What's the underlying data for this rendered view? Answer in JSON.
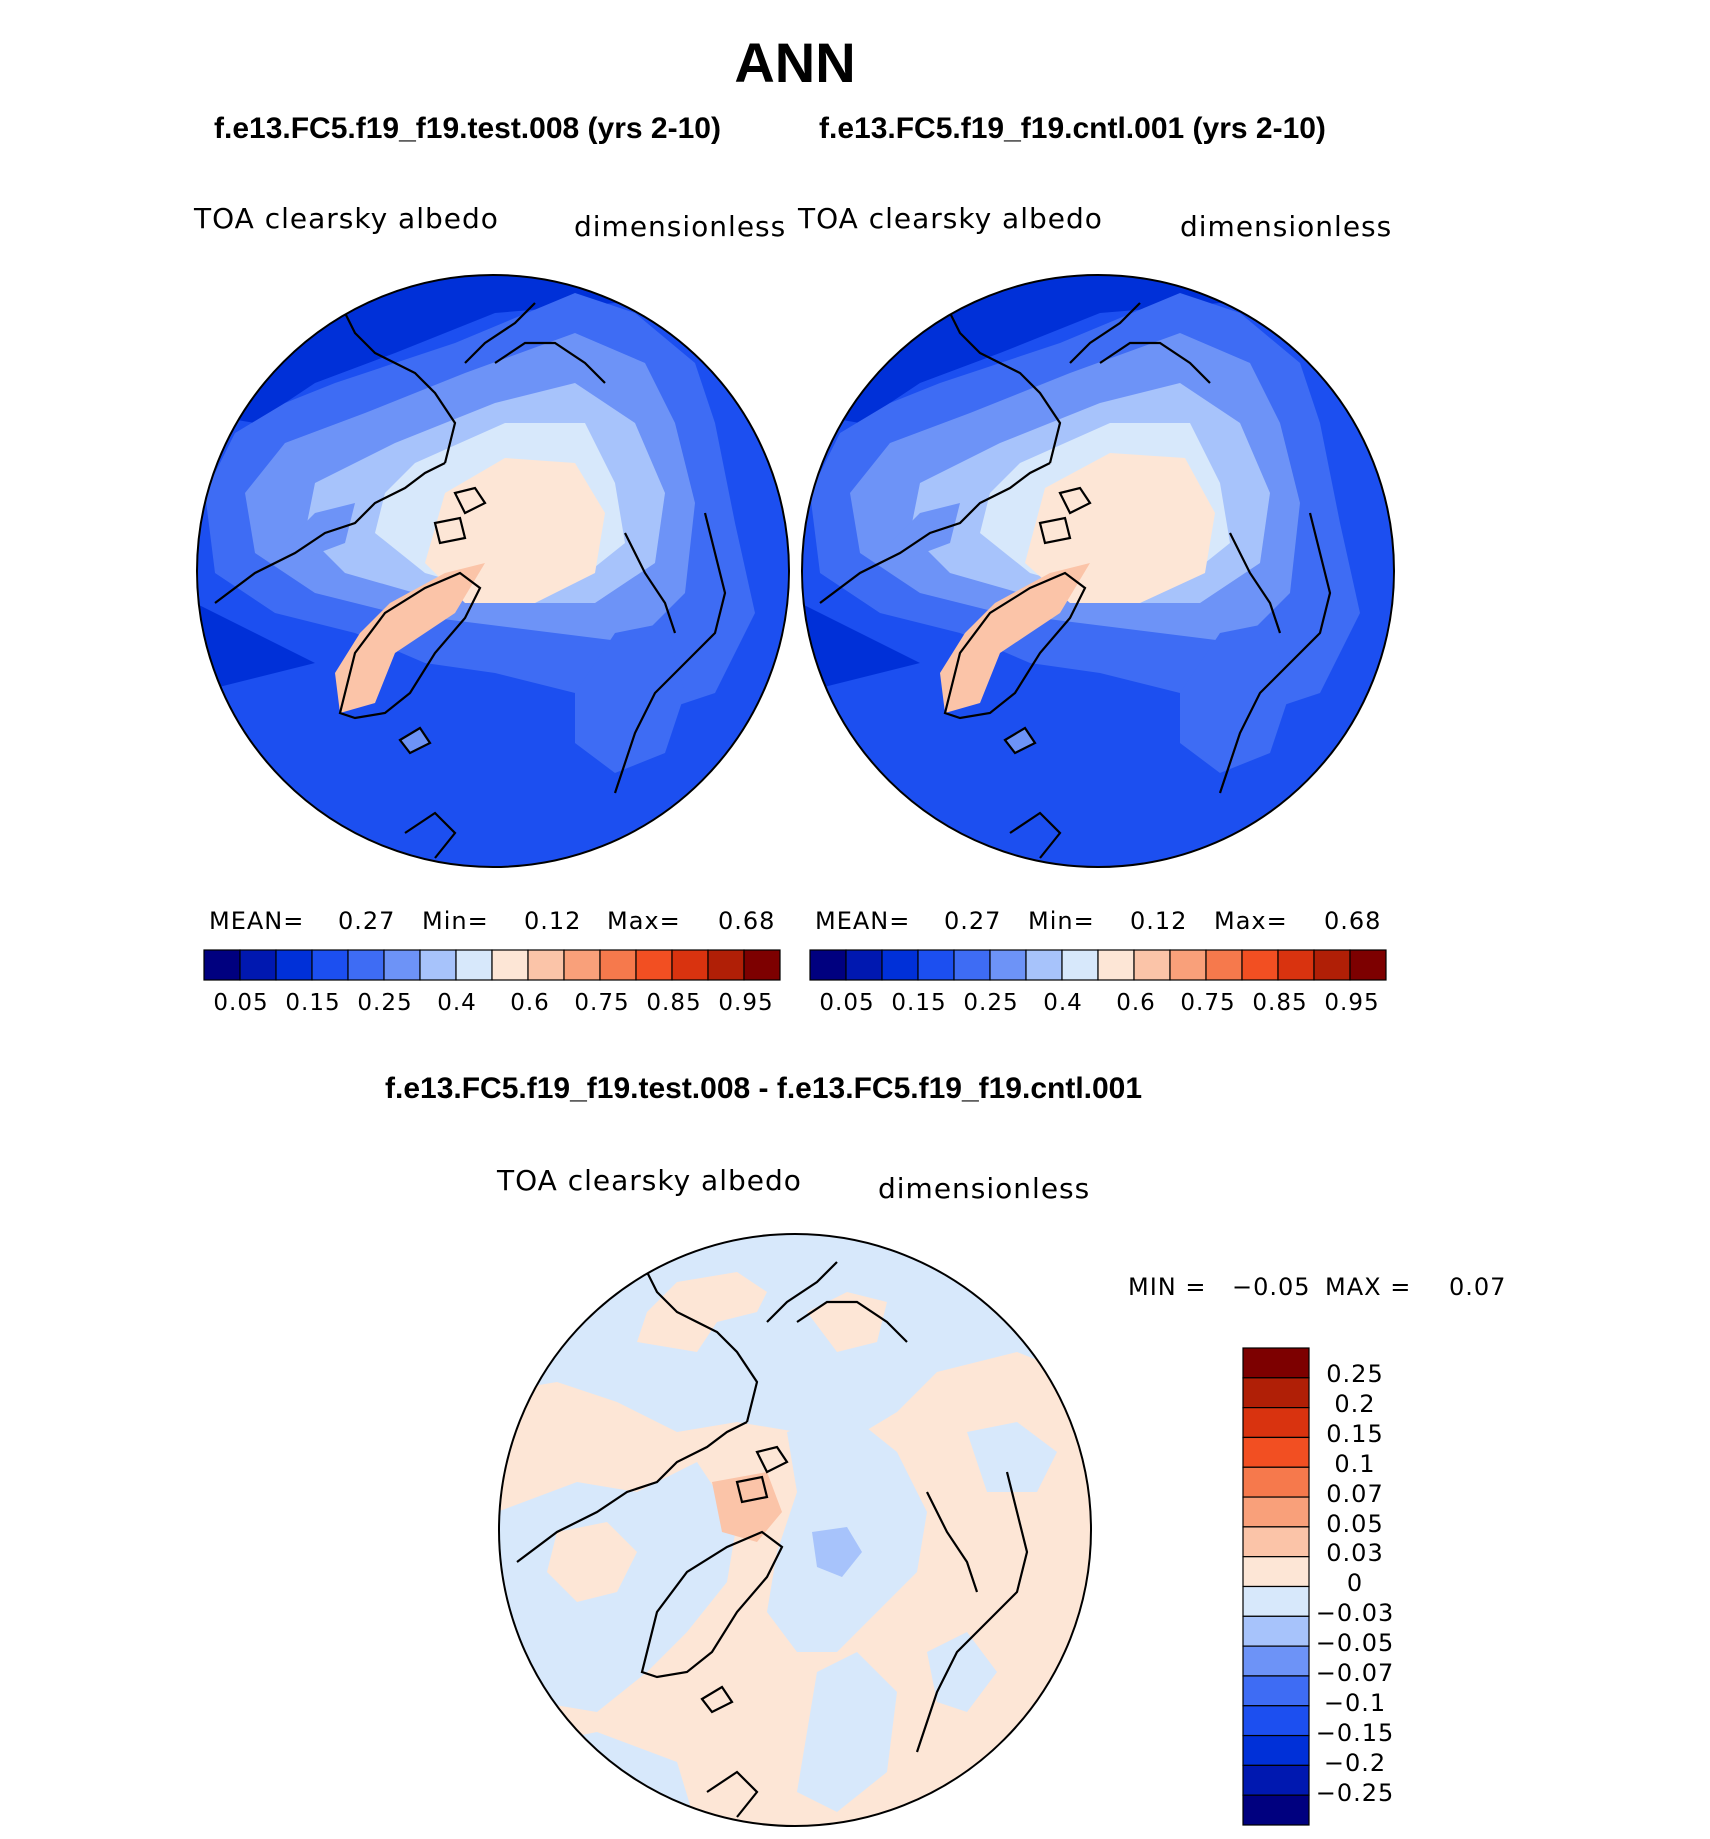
{
  "season": "ANN",
  "panels": [
    {
      "case_title": "f.e13.FC5.f19_f19.test.008 (yrs 2-10)",
      "variable": "TOA clearsky albedo",
      "units": "dimensionless",
      "stats": {
        "mean_label": "MEAN=",
        "mean": "0.27",
        "min_label": "Min=",
        "min": "0.12",
        "max_label": "Max=",
        "max": "0.68"
      }
    },
    {
      "case_title": "f.e13.FC5.f19_f19.cntl.001 (yrs 2-10)",
      "variable": "TOA clearsky albedo",
      "units": "dimensionless",
      "stats": {
        "mean_label": "MEAN=",
        "mean": "0.27",
        "min_label": "Min=",
        "min": "0.12",
        "max_label": "Max=",
        "max": "0.68"
      }
    }
  ],
  "colorbar": {
    "tick_labels": [
      "0.05",
      "0.15",
      "0.25",
      "0.4",
      "0.6",
      "0.75",
      "0.85",
      "0.95"
    ],
    "colors": [
      "#00007f",
      "#0018b0",
      "#0030d8",
      "#1c4ff0",
      "#3e6cf4",
      "#6d93f7",
      "#a7c3fb",
      "#d7e8fb",
      "#fde6d6",
      "#fbc4a8",
      "#f9a07a",
      "#f6794c",
      "#f24f22",
      "#d9330f",
      "#b01f06",
      "#7d0000"
    ]
  },
  "difference": {
    "title": "f.e13.FC5.f19_f19.test.008 - f.e13.FC5.f19_f19.cntl.001",
    "variable": "TOA clearsky albedo",
    "units": "dimensionless",
    "stats": {
      "min_label": "MIN =",
      "min": "−0.05",
      "max_label": "MAX =",
      "max": "0.07"
    },
    "colorbar": {
      "tick_labels": [
        "0.25",
        "0.2",
        "0.15",
        "0.1",
        "0.07",
        "0.05",
        "0.03",
        "0",
        "−0.03",
        "−0.05",
        "−0.07",
        "−0.1",
        "−0.15",
        "−0.2",
        "−0.25"
      ],
      "colors": [
        "#7d0000",
        "#b01f06",
        "#d9330f",
        "#f24f22",
        "#f6794c",
        "#f9a07a",
        "#fbc4a8",
        "#fde6d6",
        "#d7e8fb",
        "#a7c3fb",
        "#6d93f7",
        "#3e6cf4",
        "#1c4ff0",
        "#0030d8",
        "#0018b0",
        "#00007f"
      ]
    }
  }
}
